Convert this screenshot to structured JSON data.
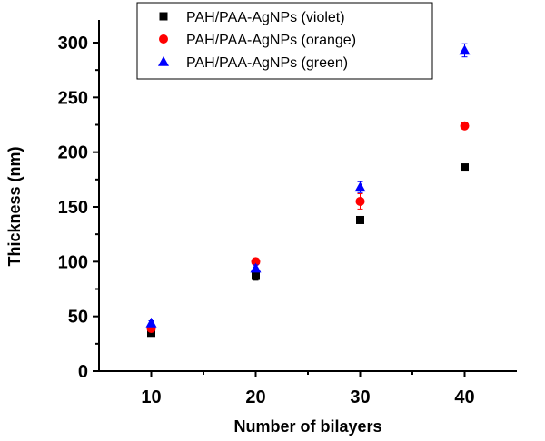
{
  "chart_data": {
    "type": "scatter",
    "title": "",
    "xlabel": "Number of bilayers",
    "ylabel": "Thickness (nm)",
    "xlim": [
      5,
      45
    ],
    "ylim": [
      0,
      300
    ],
    "xticks": [
      10,
      20,
      30,
      40
    ],
    "yticks": [
      0,
      50,
      100,
      150,
      200,
      250,
      300
    ],
    "legend_position": "top-center",
    "series": [
      {
        "name": "PAH/PAA-AgNPs (violet)",
        "marker": "square",
        "color": "#000000",
        "x": [
          10,
          20,
          30,
          40
        ],
        "y": [
          35,
          87,
          138,
          186
        ],
        "err": [
          2,
          4,
          3,
          3
        ]
      },
      {
        "name": "PAH/PAA-AgNPs (orange)",
        "marker": "circle",
        "color": "#ff0000",
        "x": [
          10,
          20,
          30,
          40
        ],
        "y": [
          39,
          100,
          155,
          224
        ],
        "err": [
          2,
          3,
          7,
          3
        ]
      },
      {
        "name": "PAH/PAA-AgNPs (green)",
        "marker": "triangle",
        "color": "#0000ff",
        "x": [
          10,
          20,
          30,
          40
        ],
        "y": [
          44,
          94,
          168,
          293
        ],
        "err": [
          2,
          3,
          5,
          6
        ]
      }
    ]
  }
}
